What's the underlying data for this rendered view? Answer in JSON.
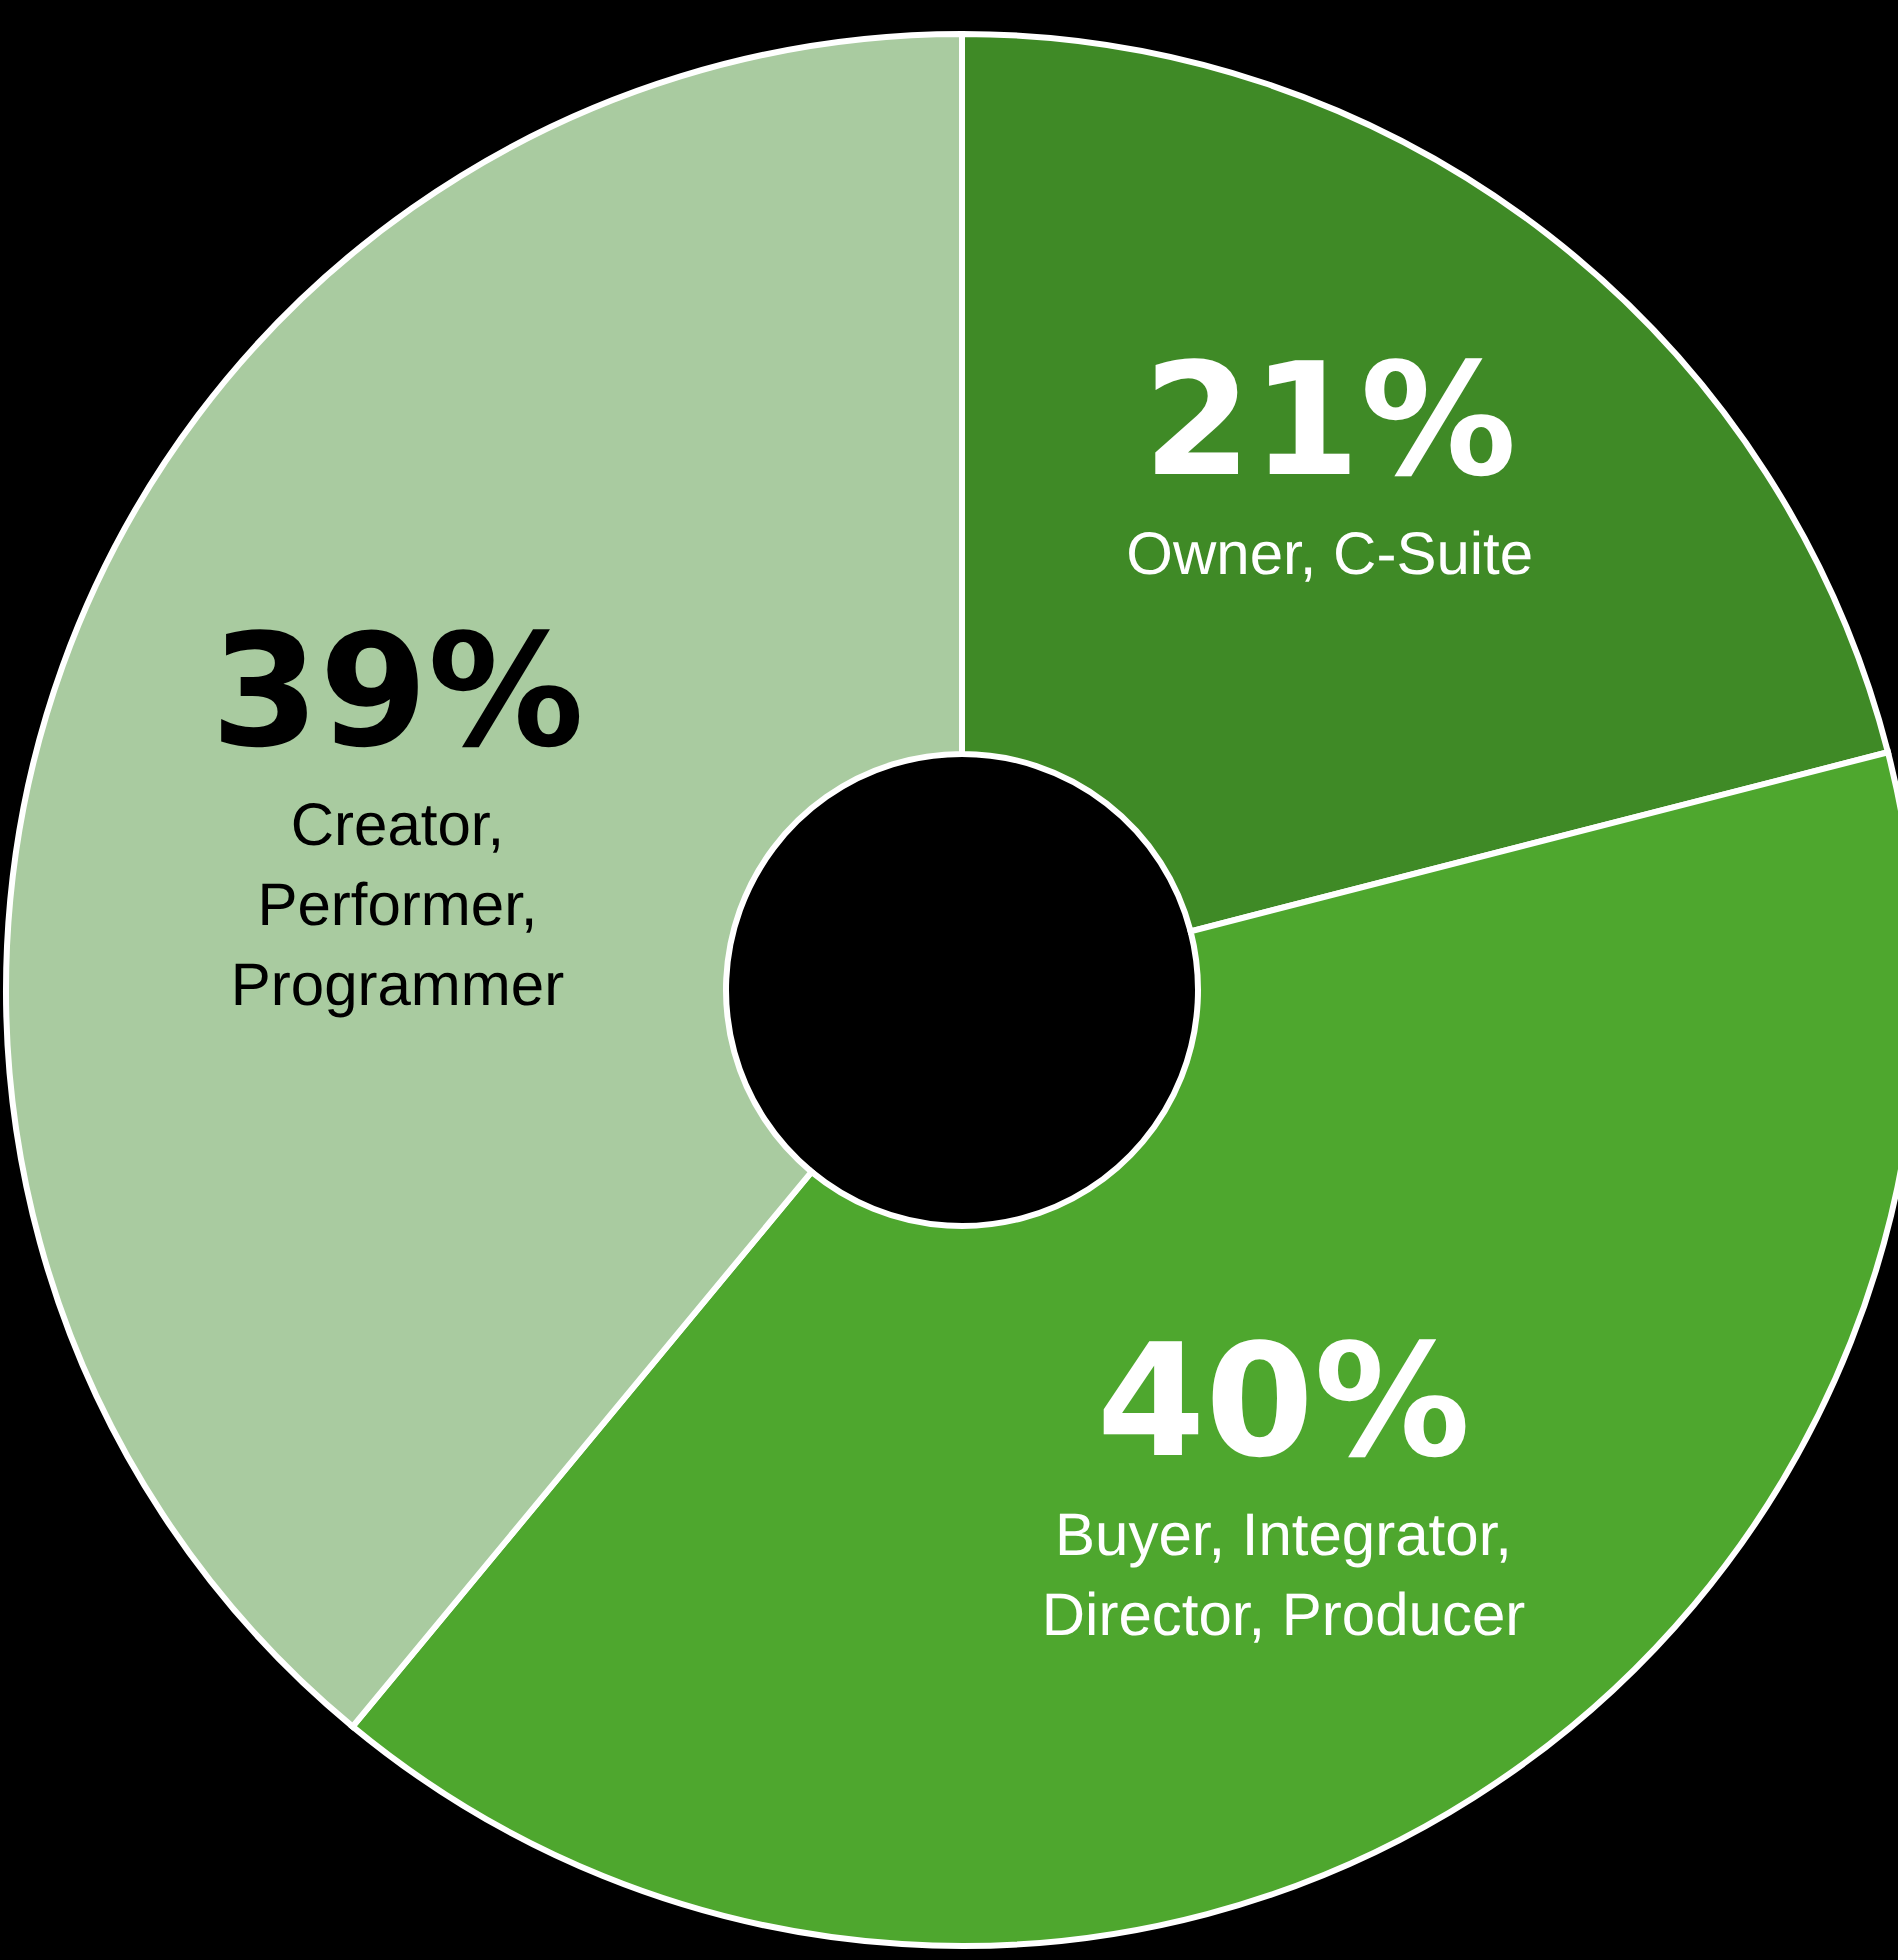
{
  "chart_data": {
    "type": "donut",
    "categories": [
      "Owner, C-Suite",
      "Buyer, Integrator, Director, Producer",
      "Creator, Performer, Programmer"
    ],
    "values": [
      21,
      40,
      39
    ],
    "value_labels": [
      "21%",
      "40%",
      "39%"
    ],
    "colors": [
      "#3f8a26",
      "#4ea72e",
      "#a9cba0"
    ]
  }
}
